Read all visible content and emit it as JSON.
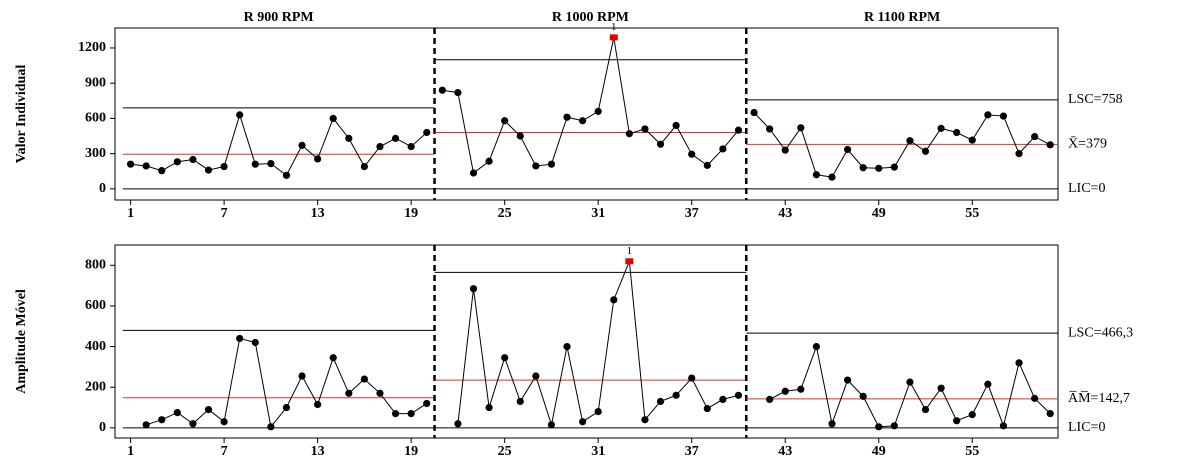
{
  "chart_data": [
    {
      "type": "control",
      "y_label": "Valor Individual",
      "x": [
        1,
        2,
        3,
        4,
        5,
        6,
        7,
        8,
        9,
        10,
        11,
        12,
        13,
        14,
        15,
        16,
        17,
        18,
        19,
        20,
        21,
        22,
        23,
        24,
        25,
        26,
        27,
        28,
        29,
        30,
        31,
        32,
        33,
        34,
        35,
        36,
        37,
        38,
        39,
        40,
        41,
        42,
        43,
        44,
        45,
        46,
        47,
        48,
        49,
        50,
        51,
        52,
        53,
        54,
        55,
        56,
        57,
        58,
        59,
        60
      ],
      "values": [
        210,
        195,
        155,
        230,
        250,
        160,
        190,
        630,
        210,
        215,
        115,
        370,
        255,
        600,
        430,
        190,
        360,
        430,
        360,
        480,
        840,
        820,
        135,
        235,
        580,
        450,
        195,
        210,
        610,
        580,
        660,
        1290,
        470,
        510,
        380,
        540,
        295,
        200,
        340,
        500,
        650,
        510,
        330,
        520,
        120,
        100,
        335,
        180,
        175,
        185,
        410,
        320,
        515,
        480,
        415,
        630,
        620,
        300,
        445,
        375
      ],
      "color": "#000000",
      "cl_color": "#d9302c",
      "flag_color": "#e00000",
      "stages": [
        {
          "name": "R 900 RPM",
          "start": 1,
          "end": 20,
          "ucl": 690,
          "cl": 295,
          "lcl": 0
        },
        {
          "name": "R 1000 RPM",
          "start": 21,
          "end": 40,
          "ucl": 1100,
          "cl": 480,
          "lcl": 0
        },
        {
          "name": "R 1100 RPM",
          "start": 41,
          "end": 60,
          "ucl": 758,
          "cl": 379,
          "lcl": 0
        }
      ],
      "limit_labels": {
        "ucl": "LSC=758",
        "cl": "X̄=379",
        "lcl": "LIC=0"
      },
      "annotations": [
        {
          "x": 32,
          "text": "1"
        }
      ],
      "xlim": [
        0,
        60.5
      ],
      "xticks": [
        1,
        7,
        13,
        19,
        25,
        31,
        37,
        43,
        49,
        55
      ],
      "ylim": [
        -95,
        1370
      ],
      "yticks": [
        0,
        300,
        600,
        900,
        1200
      ]
    },
    {
      "type": "control",
      "y_label": "Amplitude Móvel",
      "x": [
        1,
        2,
        3,
        4,
        5,
        6,
        7,
        8,
        9,
        10,
        11,
        12,
        13,
        14,
        15,
        16,
        17,
        18,
        19,
        20,
        21,
        22,
        23,
        24,
        25,
        26,
        27,
        28,
        29,
        30,
        31,
        32,
        33,
        34,
        35,
        36,
        37,
        38,
        39,
        40,
        41,
        42,
        43,
        44,
        45,
        46,
        47,
        48,
        49,
        50,
        51,
        52,
        53,
        54,
        55,
        56,
        57,
        58,
        59,
        60
      ],
      "values": [
        null,
        15,
        40,
        75,
        20,
        90,
        30,
        440,
        420,
        5,
        100,
        255,
        115,
        345,
        170,
        240,
        170,
        70,
        70,
        120,
        null,
        20,
        685,
        100,
        345,
        130,
        255,
        15,
        400,
        30,
        80,
        630,
        820,
        40,
        130,
        160,
        245,
        95,
        140,
        160,
        null,
        140,
        180,
        190,
        400,
        20,
        235,
        155,
        5,
        10,
        225,
        90,
        195,
        35,
        65,
        215,
        10,
        320,
        145,
        70
      ],
      "color": "#000000",
      "cl_color": "#d9302c",
      "flag_color": "#e00000",
      "stages": [
        {
          "start": 1,
          "end": 20,
          "ucl": 480,
          "cl": 148,
          "lcl": 0
        },
        {
          "start": 21,
          "end": 40,
          "ucl": 765,
          "cl": 235,
          "lcl": 0
        },
        {
          "start": 41,
          "end": 60,
          "ucl": 466.3,
          "cl": 142.7,
          "lcl": 0
        }
      ],
      "limit_labels": {
        "ucl": "LSC=466,3",
        "cl": "A̅M̅=142,7",
        "lcl": "LIC=0"
      },
      "annotations": [
        {
          "x": 33,
          "text": "1"
        }
      ],
      "xlim": [
        0,
        60.5
      ],
      "xticks": [
        1,
        7,
        13,
        19,
        25,
        31,
        37,
        43,
        49,
        55
      ],
      "ylim": [
        -50,
        900
      ],
      "yticks": [
        0,
        200,
        400,
        600,
        800
      ]
    }
  ]
}
